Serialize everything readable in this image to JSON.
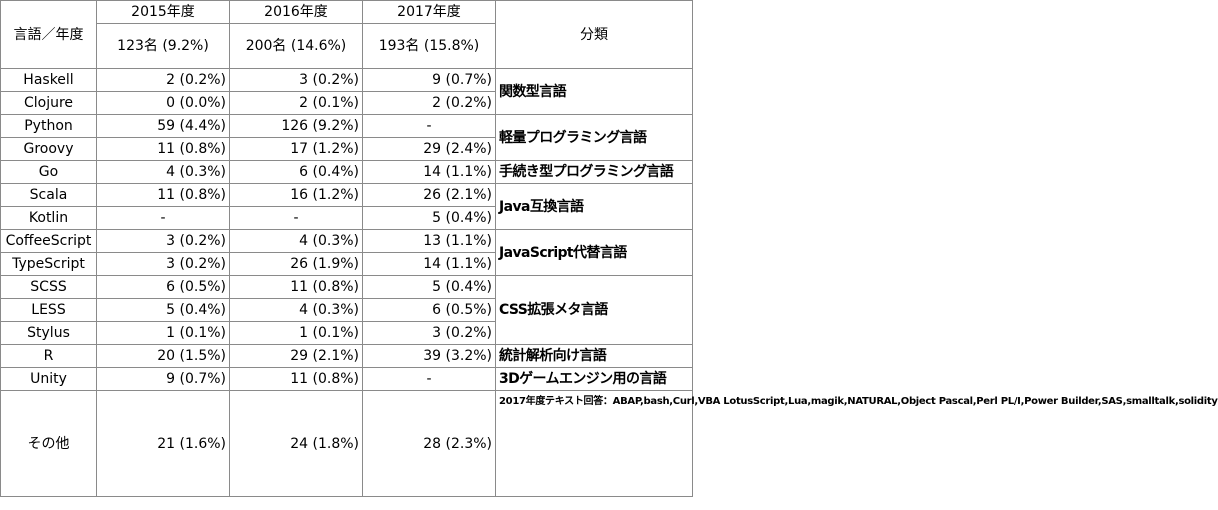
{
  "header": {
    "corner_label": "言語／年度",
    "category_label": "分類",
    "years": [
      {
        "year": "2015年度",
        "total": "123名 (9.2%)"
      },
      {
        "year": "2016年度",
        "total": "200名 (14.6%)"
      },
      {
        "year": "2017年度",
        "total": "193名 (15.8%)"
      }
    ]
  },
  "rows": [
    {
      "lang": "Haskell",
      "y2015": "2 (0.2%)",
      "y2016": "3 (0.2%)",
      "y2017": "9 (0.7%)"
    },
    {
      "lang": "Clojure",
      "y2015": "0 (0.0%)",
      "y2016": "2 (0.1%)",
      "y2017": "2 (0.2%)"
    },
    {
      "lang": "Python",
      "y2015": "59 (4.4%)",
      "y2016": "126 (9.2%)",
      "y2017": "-"
    },
    {
      "lang": "Groovy",
      "y2015": "11 (0.8%)",
      "y2016": "17 (1.2%)",
      "y2017": "29 (2.4%)"
    },
    {
      "lang": "Go",
      "y2015": "4 (0.3%)",
      "y2016": "6 (0.4%)",
      "y2017": "14 (1.1%)"
    },
    {
      "lang": "Scala",
      "y2015": "11 (0.8%)",
      "y2016": "16 (1.2%)",
      "y2017": "26 (2.1%)"
    },
    {
      "lang": "Kotlin",
      "y2015": "-",
      "y2016": "-",
      "y2017": "5 (0.4%)"
    },
    {
      "lang": "CoffeeScript",
      "y2015": "3 (0.2%)",
      "y2016": "4 (0.3%)",
      "y2017": "13 (1.1%)"
    },
    {
      "lang": "TypeScript",
      "y2015": "3 (0.2%)",
      "y2016": "26 (1.9%)",
      "y2017": "14 (1.1%)"
    },
    {
      "lang": "SCSS",
      "y2015": "6 (0.5%)",
      "y2016": "11 (0.8%)",
      "y2017": "5 (0.4%)"
    },
    {
      "lang": "LESS",
      "y2015": "5 (0.4%)",
      "y2016": "4 (0.3%)",
      "y2017": "6 (0.5%)"
    },
    {
      "lang": "Stylus",
      "y2015": "1 (0.1%)",
      "y2016": "1 (0.1%)",
      "y2017": "3 (0.2%)"
    },
    {
      "lang": "R",
      "y2015": "20 (1.5%)",
      "y2016": "29 (2.1%)",
      "y2017": "39 (3.2%)"
    },
    {
      "lang": "Unity",
      "y2015": "9 (0.7%)",
      "y2016": "11 (0.8%)",
      "y2017": "-"
    },
    {
      "lang": "その他",
      "y2015": "21 (1.6%)",
      "y2016": "24 (1.8%)",
      "y2017": "28 (2.3%)"
    }
  ],
  "categories": {
    "functional": "関数型言語",
    "lightweight": "軽量プログラミング言語",
    "procedural": "手続き型プログラミング言語",
    "java_compat": "Java互換言語",
    "js_alt": "JavaScript代替言語",
    "css_meta": "CSS拡張メタ言語",
    "statistics": "統計解析向け言語",
    "game_engine": "3Dゲームエンジン用の言語",
    "other_note": "2017年度テキスト回答：ABAP,bash,Curl,VBA LotusScript,Lua,magik,NATURAL,Object Pascal,Perl PL/I,Power Builder,SAS,smalltalk,solidity"
  }
}
